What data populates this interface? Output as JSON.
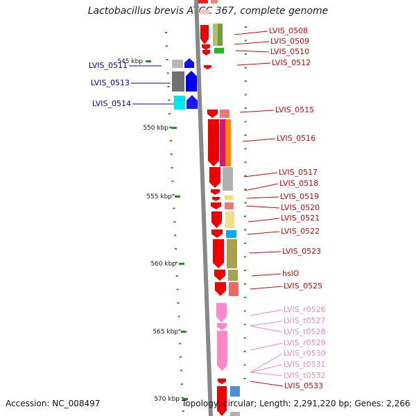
{
  "title": "Lactobacillus brevis ATCC 367, complete genome",
  "footer": {
    "accession": "Accession: NC_008497",
    "summary": "Topology: circular; Length: 2,291,220 bp; Genes: 2,266"
  },
  "scale": {
    "ticks": [
      {
        "label": "545 kbp"
      },
      {
        "label": "550 kbp"
      },
      {
        "label": "555 kbp"
      },
      {
        "label": "560 kbp"
      },
      {
        "label": "565 kbp"
      },
      {
        "label": "570 kbp"
      }
    ]
  },
  "genes_left": [
    {
      "id": "LVIS_0511",
      "color": "#0000cc"
    },
    {
      "id": "LVIS_0513",
      "color": "#0000cc"
    },
    {
      "id": "LVIS_0514",
      "color": "#0000cc"
    }
  ],
  "genes_right": [
    {
      "id": "LVIS_0508",
      "color": "#dd0000"
    },
    {
      "id": "LVIS_0509",
      "color": "#dd0000"
    },
    {
      "id": "LVIS_0510",
      "color": "#dd0000"
    },
    {
      "id": "LVIS_0512",
      "color": "#dd0000"
    },
    {
      "id": "LVIS_0515",
      "color": "#dd0000"
    },
    {
      "id": "LVIS_0516",
      "color": "#dd0000"
    },
    {
      "id": "LVIS_0517",
      "color": "#dd0000"
    },
    {
      "id": "LVIS_0518",
      "color": "#dd0000"
    },
    {
      "id": "LVIS_0519",
      "color": "#dd0000"
    },
    {
      "id": "LVIS_0520",
      "color": "#dd0000"
    },
    {
      "id": "LVIS_0521",
      "color": "#dd0000"
    },
    {
      "id": "LVIS_0522",
      "color": "#dd0000"
    },
    {
      "id": "LVIS_0523",
      "color": "#dd0000"
    },
    {
      "id": "hslO",
      "color": "#dd0000"
    },
    {
      "id": "LVIS_0525",
      "color": "#dd0000"
    },
    {
      "id": "LVIS_r0526",
      "color": "#ee88bb"
    },
    {
      "id": "LVIS_t0527",
      "color": "#ee88bb"
    },
    {
      "id": "LVIS_t0528",
      "color": "#ee88bb"
    },
    {
      "id": "LVIS_r0529",
      "color": "#ee88bb"
    },
    {
      "id": "LVIS_r0530",
      "color": "#ee88bb"
    },
    {
      "id": "LVIS_t0531",
      "color": "#ee88bb"
    },
    {
      "id": "LVIS_t0532",
      "color": "#ee88bb"
    },
    {
      "id": "LVIS_0533",
      "color": "#dd0000"
    }
  ]
}
